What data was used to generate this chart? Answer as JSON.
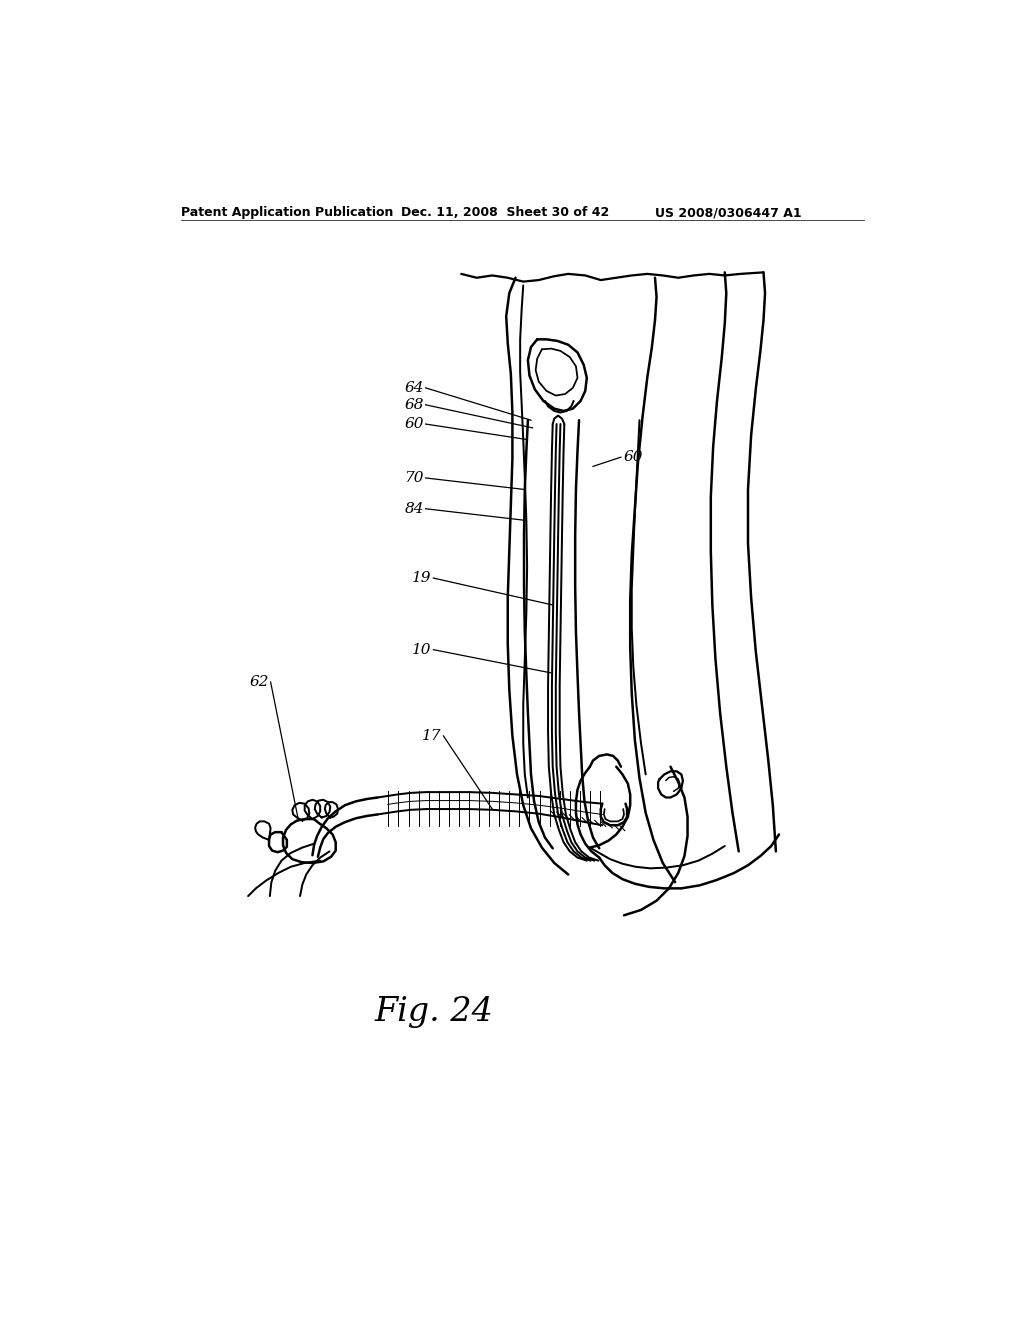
{
  "bg_color": "#ffffff",
  "header_left": "Patent Application Publication",
  "header_mid": "Dec. 11, 2008  Sheet 30 of 42",
  "header_right": "US 2008/0306447 A1",
  "fig_label": "Fig. 24",
  "line_color": "#000000",
  "line_width": 1.8
}
